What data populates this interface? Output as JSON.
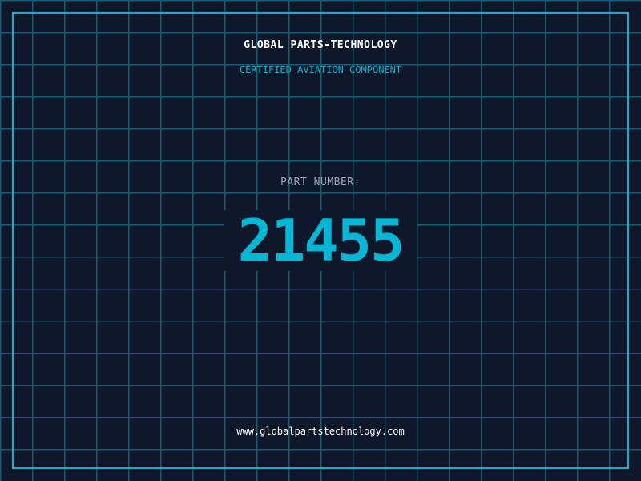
{
  "header": {
    "title": "GLOBAL PARTS-TECHNOLOGY",
    "subtitle": "CERTIFIED AVIATION COMPONENT"
  },
  "part": {
    "label": "PART NUMBER:",
    "number": "21455"
  },
  "footer": {
    "url": "www.globalpartstechnology.com"
  },
  "colors": {
    "background": "#0f172a",
    "accent": "#06b6d4",
    "grid": "#155e75"
  }
}
